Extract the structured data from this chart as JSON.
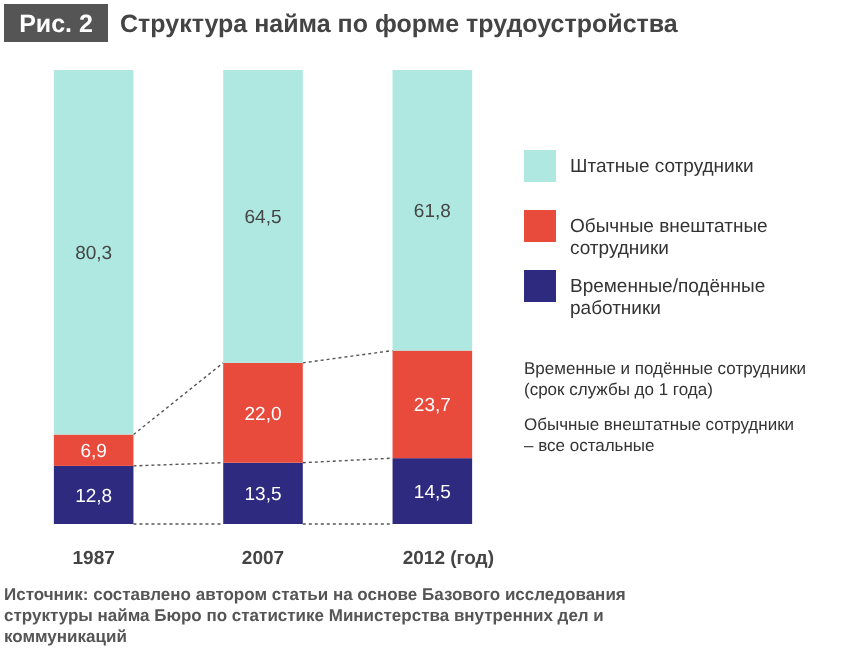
{
  "chart_data": {
    "type": "bar",
    "stacked": true,
    "relative": false,
    "title": "Структура найма по форме трудоустройства",
    "categories": [
      "1987",
      "2007",
      "2012 (год)"
    ],
    "series": [
      {
        "name": "Временные/подённые работники",
        "color": "#2e2a80",
        "values": [
          12.8,
          13.5,
          14.5
        ],
        "value_labels": [
          "12,8",
          "13,5",
          "14,5"
        ]
      },
      {
        "name": "Обычные внештатные сотрудники",
        "color": "#e84a3c",
        "values": [
          6.9,
          22.0,
          23.7
        ],
        "value_labels": [
          "6,9",
          "22,0",
          "23,7"
        ]
      },
      {
        "name": "Штатные сотрудники",
        "color": "#aee8e1",
        "values": [
          80.3,
          64.5,
          61.8
        ],
        "value_labels": [
          "80,3",
          "64,5",
          "61,8"
        ]
      }
    ],
    "legend": "right",
    "annotations": [
      "Рис. 2",
      "Временные и подённые сотрудники (срок службы до 1 года)",
      "Обычные внештатные сотрудники – все остальные",
      "Источник: составлено автором статьи на основе Базового исследования структуры найма Бюро по статистике Министерства внутренних дел и коммуникаций"
    ]
  }
}
